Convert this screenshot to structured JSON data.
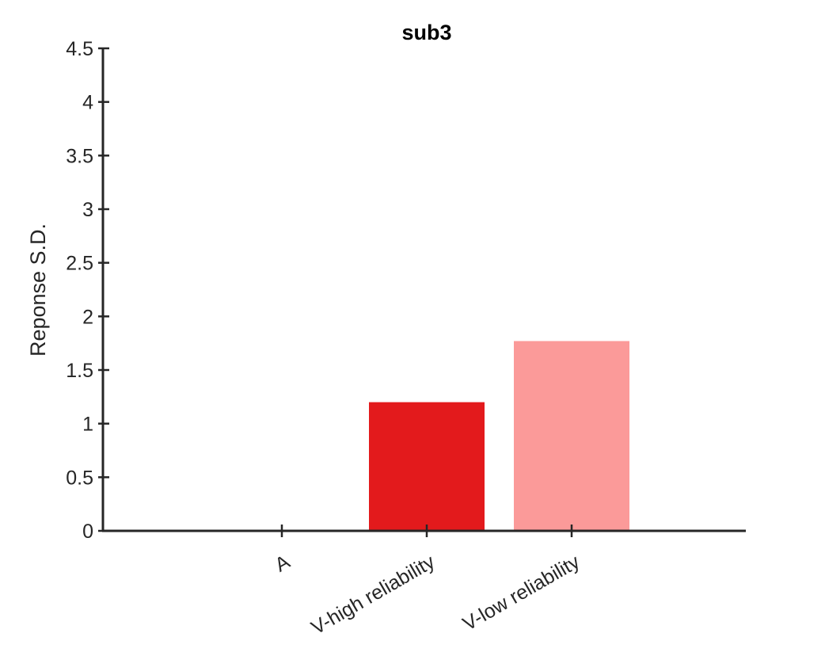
{
  "chart_data": {
    "type": "bar",
    "title": "sub3",
    "xlabel": "",
    "ylabel": "Reponse S.D.",
    "categories": [
      "A",
      "V-high reliability",
      "V-low reliability"
    ],
    "values": [
      0,
      1.2,
      1.77
    ],
    "colors": [
      "#ffffff",
      "#e31a1c",
      "#fb9a99"
    ],
    "ylim": [
      0,
      4.5
    ],
    "yticks": [
      0,
      0.5,
      1,
      1.5,
      2,
      2.5,
      3,
      3.5,
      4,
      4.5
    ],
    "ytick_labels": [
      "0",
      "0.5",
      "1",
      "1.5",
      "2",
      "2.5",
      "3",
      "3.5",
      "4",
      "4.5"
    ],
    "grid": false,
    "legend": "none"
  }
}
